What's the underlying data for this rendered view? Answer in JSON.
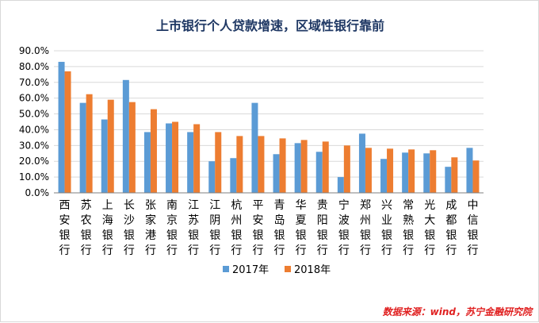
{
  "source_note": "数据来源：wind，苏宁金融研究院",
  "chart_data": {
    "type": "bar",
    "title": "上市银行个人贷款增速，区域性银行靠前",
    "categories": [
      "西安银行",
      "苏农银行",
      "上海银行",
      "长沙银行",
      "张家港行",
      "南京银行",
      "江苏银行",
      "江阴银行",
      "杭州银行",
      "平安银行",
      "青岛银行",
      "华夏银行",
      "贵阳银行",
      "宁波银行",
      "郑州银行",
      "兴业银行",
      "常熟银行",
      "光大银行",
      "成都银行",
      "中信银行"
    ],
    "series": [
      {
        "name": "2017年",
        "color": "#5b9bd5",
        "values": [
          83.0,
          57.0,
          46.5,
          71.5,
          38.5,
          44.0,
          38.5,
          20.0,
          22.0,
          57.0,
          24.5,
          31.5,
          26.0,
          10.0,
          37.5,
          21.5,
          25.5,
          25.0,
          16.5,
          28.5
        ]
      },
      {
        "name": "2018年",
        "color": "#ed7d31",
        "values": [
          77.0,
          62.5,
          59.0,
          57.5,
          53.0,
          45.0,
          43.5,
          38.5,
          36.0,
          36.0,
          34.5,
          33.5,
          32.5,
          30.0,
          28.5,
          28.0,
          27.5,
          27.0,
          22.5,
          20.5
        ]
      }
    ],
    "yticks": [
      "0.0%",
      "10.0%",
      "20.0%",
      "30.0%",
      "40.0%",
      "50.0%",
      "60.0%",
      "70.0%",
      "80.0%",
      "90.0%"
    ],
    "ylim": [
      0,
      90
    ],
    "ystep": 10,
    "grid": true,
    "legend_position": "bottom-center"
  }
}
